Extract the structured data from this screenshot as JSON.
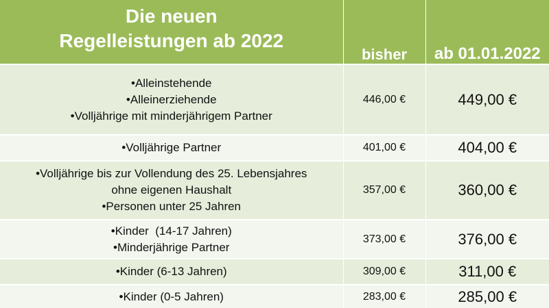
{
  "header": {
    "title_line1": "Die neuen",
    "title_line2": "Regelleistungen ab 2022",
    "col_old": "bisher",
    "col_new": "ab 01.01.2022"
  },
  "colors": {
    "header_bg": "#9bbb59",
    "header_text": "#ffffff",
    "row_odd_bg": "#e6eedb",
    "row_even_bg": "#f2f6ee"
  },
  "rows": [
    {
      "lines": [
        "•Alleinstehende",
        "•Alleinerziehende",
        "•Volljährige mit minderjährigem Partner"
      ],
      "old": "446,00 €",
      "new": "449,00 €"
    },
    {
      "lines": [
        "•Volljährige Partner"
      ],
      "old": "401,00 €",
      "new": "404,00 €"
    },
    {
      "lines": [
        "•Volljährige bis zur Vollendung des 25. Lebensjahres",
        "ohne eigenen Haushalt",
        "•Personen unter 25 Jahren"
      ],
      "old": "357,00 €",
      "new": "360,00 €"
    },
    {
      "lines": [
        "•Kinder  (14-17 Jahren)",
        "•Minderjährige Partner"
      ],
      "old": "373,00 €",
      "new": "376,00 €"
    },
    {
      "lines": [
        "•Kinder (6-13 Jahren)"
      ],
      "old": "309,00 €",
      "new": "311,00 €"
    },
    {
      "lines": [
        "•Kinder (0-5 Jahren)"
      ],
      "old": "283,00 €",
      "new": "285,00 €"
    }
  ]
}
